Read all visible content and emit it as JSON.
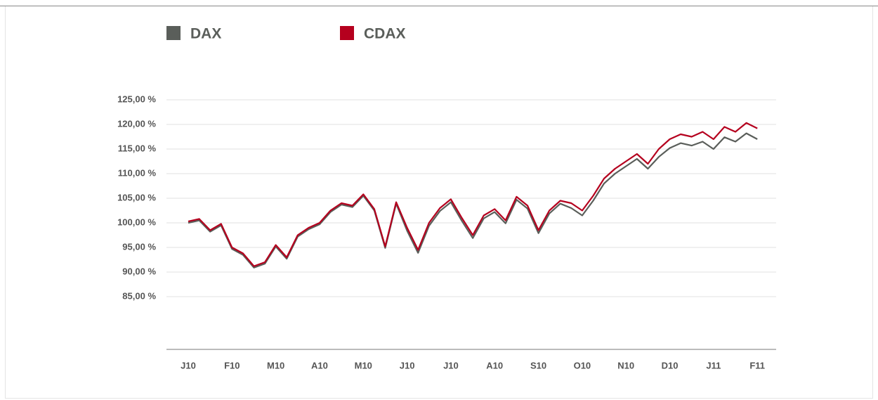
{
  "chart_data": {
    "type": "line",
    "categories": [
      "J10",
      null,
      null,
      null,
      "F10",
      null,
      null,
      null,
      "M10",
      null,
      null,
      null,
      "A10",
      null,
      null,
      null,
      "M10",
      null,
      null,
      null,
      "J10",
      null,
      null,
      null,
      "J10",
      null,
      null,
      null,
      "A10",
      null,
      null,
      null,
      "S10",
      null,
      null,
      null,
      "O10",
      null,
      null,
      null,
      "N10",
      null,
      null,
      null,
      "D10",
      null,
      null,
      null,
      "J11",
      null,
      null,
      null,
      "F11"
    ],
    "series": [
      {
        "name": "DAX",
        "color": "#5a5e5a",
        "values": [
          100.0,
          100.5,
          98.2,
          99.5,
          94.7,
          93.5,
          90.9,
          91.7,
          95.2,
          92.7,
          97.2,
          98.7,
          99.7,
          102.2,
          103.7,
          103.2,
          105.5,
          102.5,
          94.9,
          103.9,
          98.4,
          93.9,
          99.4,
          102.4,
          104.2,
          100.4,
          96.9,
          100.9,
          102.2,
          99.9,
          104.7,
          102.9,
          97.9,
          101.9,
          103.9,
          103.0,
          101.5,
          104.5,
          108.0,
          110.0,
          111.5,
          113.0,
          111.0,
          113.4,
          115.2,
          116.2,
          115.7,
          116.5,
          115.0,
          117.4,
          116.5,
          118.2,
          117.0
        ]
      },
      {
        "name": "CDAX",
        "color": "#b5001e",
        "values": [
          100.3,
          100.8,
          98.5,
          99.8,
          95.0,
          93.8,
          91.2,
          92.0,
          95.5,
          93.0,
          97.5,
          99.0,
          100.0,
          102.5,
          104.0,
          103.5,
          105.8,
          102.8,
          95.2,
          104.2,
          99.0,
          94.5,
          100.0,
          103.0,
          104.8,
          101.0,
          97.5,
          101.5,
          102.8,
          100.5,
          105.3,
          103.5,
          98.5,
          102.5,
          104.5,
          104.0,
          102.5,
          105.5,
          109.0,
          111.0,
          112.5,
          114.0,
          112.0,
          115.0,
          117.0,
          118.0,
          117.5,
          118.5,
          117.0,
          119.5,
          118.5,
          120.3,
          119.2
        ]
      }
    ],
    "ylim": [
      74,
      126
    ],
    "yticks": [
      {
        "value": 85,
        "label": "85,00 %"
      },
      {
        "value": 90,
        "label": "90,00 %"
      },
      {
        "value": 95,
        "label": "95,00 %"
      },
      {
        "value": 100,
        "label": "100,00 %"
      },
      {
        "value": 105,
        "label": "105,00 %"
      },
      {
        "value": 110,
        "label": "110,00 %"
      },
      {
        "value": 115,
        "label": "115,00 %"
      },
      {
        "value": 120,
        "label": "120,00 %"
      },
      {
        "value": 125,
        "label": "125,00 %"
      }
    ],
    "grid": true,
    "legend": "top-left"
  }
}
